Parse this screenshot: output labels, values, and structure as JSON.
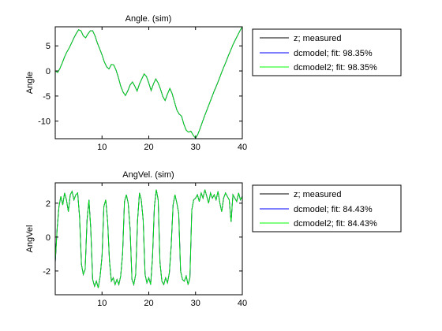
{
  "chart_data": [
    {
      "type": "line",
      "title": "Angle. (sim)",
      "xlabel": "",
      "ylabel": "Angle",
      "xlim": [
        0,
        40
      ],
      "ylim": [
        -13.5,
        8.8
      ],
      "xticks": [
        10,
        20,
        30,
        40
      ],
      "yticks": [
        5,
        0,
        -5,
        -10
      ],
      "grid": false,
      "legend_position": "right",
      "series": [
        {
          "name": "z; measured",
          "color": "#000000",
          "x": [
            0,
            0.5,
            1,
            1.5,
            2,
            2.5,
            3,
            3.5,
            4,
            4.5,
            5,
            5.5,
            6,
            6.5,
            7,
            7.5,
            8,
            8.5,
            9,
            9.5,
            10,
            10.5,
            11,
            11.5,
            12,
            12.5,
            13,
            13.5,
            14,
            14.5,
            15,
            15.5,
            16,
            16.5,
            17,
            17.5,
            18,
            18.5,
            19,
            19.5,
            20,
            20.5,
            21,
            21.5,
            22,
            22.5,
            23,
            23.5,
            24,
            24.5,
            25,
            25.5,
            26,
            26.5,
            27,
            27.5,
            28,
            28.5,
            29,
            29.5,
            30,
            30.5,
            31,
            31.5,
            32,
            32.5,
            33,
            33.5,
            34,
            34.5,
            35,
            35.5,
            36,
            36.5,
            37,
            37.5,
            38,
            38.5,
            39,
            39.5,
            40
          ],
          "y": [
            0,
            -0.3,
            0.5,
            1.6,
            2.8,
            3.8,
            4.6,
            5.6,
            6.6,
            7.5,
            8.2,
            8.0,
            7.0,
            6.6,
            7.4,
            8.0,
            8.0,
            7.0,
            5.6,
            4.4,
            3.2,
            1.8,
            0.8,
            0.4,
            1.3,
            1.2,
            0.2,
            -1.3,
            -3.0,
            -4.2,
            -4.9,
            -4.0,
            -2.8,
            -2.2,
            -3.0,
            -4.0,
            -2.6,
            -1.6,
            -0.6,
            -1.1,
            -2.4,
            -3.9,
            -2.6,
            -1.6,
            -2.4,
            -3.6,
            -5.1,
            -5.9,
            -4.6,
            -3.5,
            -4.5,
            -6.2,
            -7.8,
            -8.6,
            -9.0,
            -10.6,
            -11.8,
            -12.2,
            -12.0,
            -12.8,
            -13.4,
            -12.6,
            -11.4,
            -10.1,
            -8.8,
            -7.6,
            -6.4,
            -5.2,
            -4.0,
            -2.9,
            -1.7,
            -0.5,
            0.7,
            1.8,
            3.0,
            4.1,
            5.2,
            6.2,
            7.1,
            8.0,
            8.8
          ]
        },
        {
          "name": "dcmodel; fit: 98.35%",
          "color": "#0000ff",
          "hidden_under_next": true
        },
        {
          "name": "dcmodel2; fit: 98.35%",
          "color": "#00ff00"
        }
      ]
    },
    {
      "type": "line",
      "title": "AngVel. (sim)",
      "xlabel": "",
      "ylabel": "AngVel",
      "xlim": [
        0,
        40
      ],
      "ylim": [
        -3.4,
        3.2
      ],
      "xticks": [
        10,
        20,
        30,
        40
      ],
      "yticks": [
        2,
        0,
        -2
      ],
      "grid": false,
      "legend_position": "right",
      "series": [
        {
          "name": "z; measured",
          "color": "#000000",
          "x": [
            0,
            0.4,
            0.8,
            1.2,
            1.6,
            2.0,
            2.4,
            2.8,
            3.2,
            3.6,
            4.0,
            4.4,
            4.8,
            5.2,
            5.6,
            6.0,
            6.4,
            6.8,
            7.2,
            7.6,
            8.0,
            8.4,
            8.8,
            9.2,
            9.6,
            10.0,
            10.4,
            10.8,
            11.2,
            11.6,
            12.0,
            12.4,
            12.8,
            13.2,
            13.6,
            14.0,
            14.4,
            14.8,
            15.2,
            15.6,
            16.0,
            16.4,
            16.8,
            17.2,
            17.6,
            18.0,
            18.4,
            18.8,
            19.2,
            19.6,
            20.0,
            20.4,
            20.8,
            21.2,
            21.6,
            22.0,
            22.4,
            22.8,
            23.2,
            23.6,
            24.0,
            24.4,
            24.8,
            25.2,
            25.6,
            26.0,
            26.4,
            26.8,
            27.2,
            27.6,
            28.0,
            28.4,
            28.8,
            29.2,
            29.6,
            30.0,
            30.4,
            30.8,
            31.2,
            31.6,
            32.0,
            32.4,
            32.8,
            33.2,
            33.6,
            34.0,
            34.4,
            34.8,
            35.2,
            35.6,
            36.0,
            36.4,
            36.8,
            37.2,
            37.6,
            38.0,
            38.4,
            38.8,
            39.2,
            39.6,
            40.0
          ],
          "y": [
            -1.5,
            0.5,
            1.8,
            2.4,
            1.9,
            2.6,
            2.2,
            1.5,
            2.5,
            2.7,
            2.2,
            2.5,
            2.6,
            1.2,
            -1.6,
            -2.2,
            -1.9,
            1.0,
            2.2,
            0.5,
            -2.5,
            -2.9,
            -2.6,
            -3.0,
            -2.3,
            -1.1,
            1.8,
            2.2,
            0.9,
            -1.4,
            -2.6,
            -2.4,
            -2.8,
            -2.5,
            -2.8,
            -2.3,
            -1.0,
            2.1,
            2.5,
            2.0,
            0.5,
            -2.5,
            -2.8,
            -2.2,
            1.0,
            2.6,
            2.2,
            1.0,
            -2.2,
            -2.7,
            -2.4,
            -2.8,
            -1.2,
            1.8,
            2.8,
            2.2,
            -1.5,
            -2.6,
            -2.8,
            -2.4,
            -2.7,
            -2.1,
            -0.5,
            1.9,
            2.5,
            2.0,
            1.4,
            -2.0,
            -2.5,
            -2.6,
            -2.3,
            -2.8,
            -2.4,
            1.6,
            2.2,
            2.3,
            2.5,
            2.1,
            2.6,
            2.3,
            2.8,
            2.4,
            2.0,
            2.6,
            2.3,
            2.5,
            2.2,
            2.7,
            2.0,
            1.5,
            2.3,
            2.6,
            2.4,
            2.2,
            0.9,
            2.5,
            2.3,
            2.1,
            2.6,
            2.2,
            2.4
          ]
        },
        {
          "name": "dcmodel; fit: 84.43%",
          "color": "#0000ff",
          "hidden_under_next": true
        },
        {
          "name": "dcmodel2; fit: 84.43%",
          "color": "#00ff00"
        }
      ]
    }
  ]
}
